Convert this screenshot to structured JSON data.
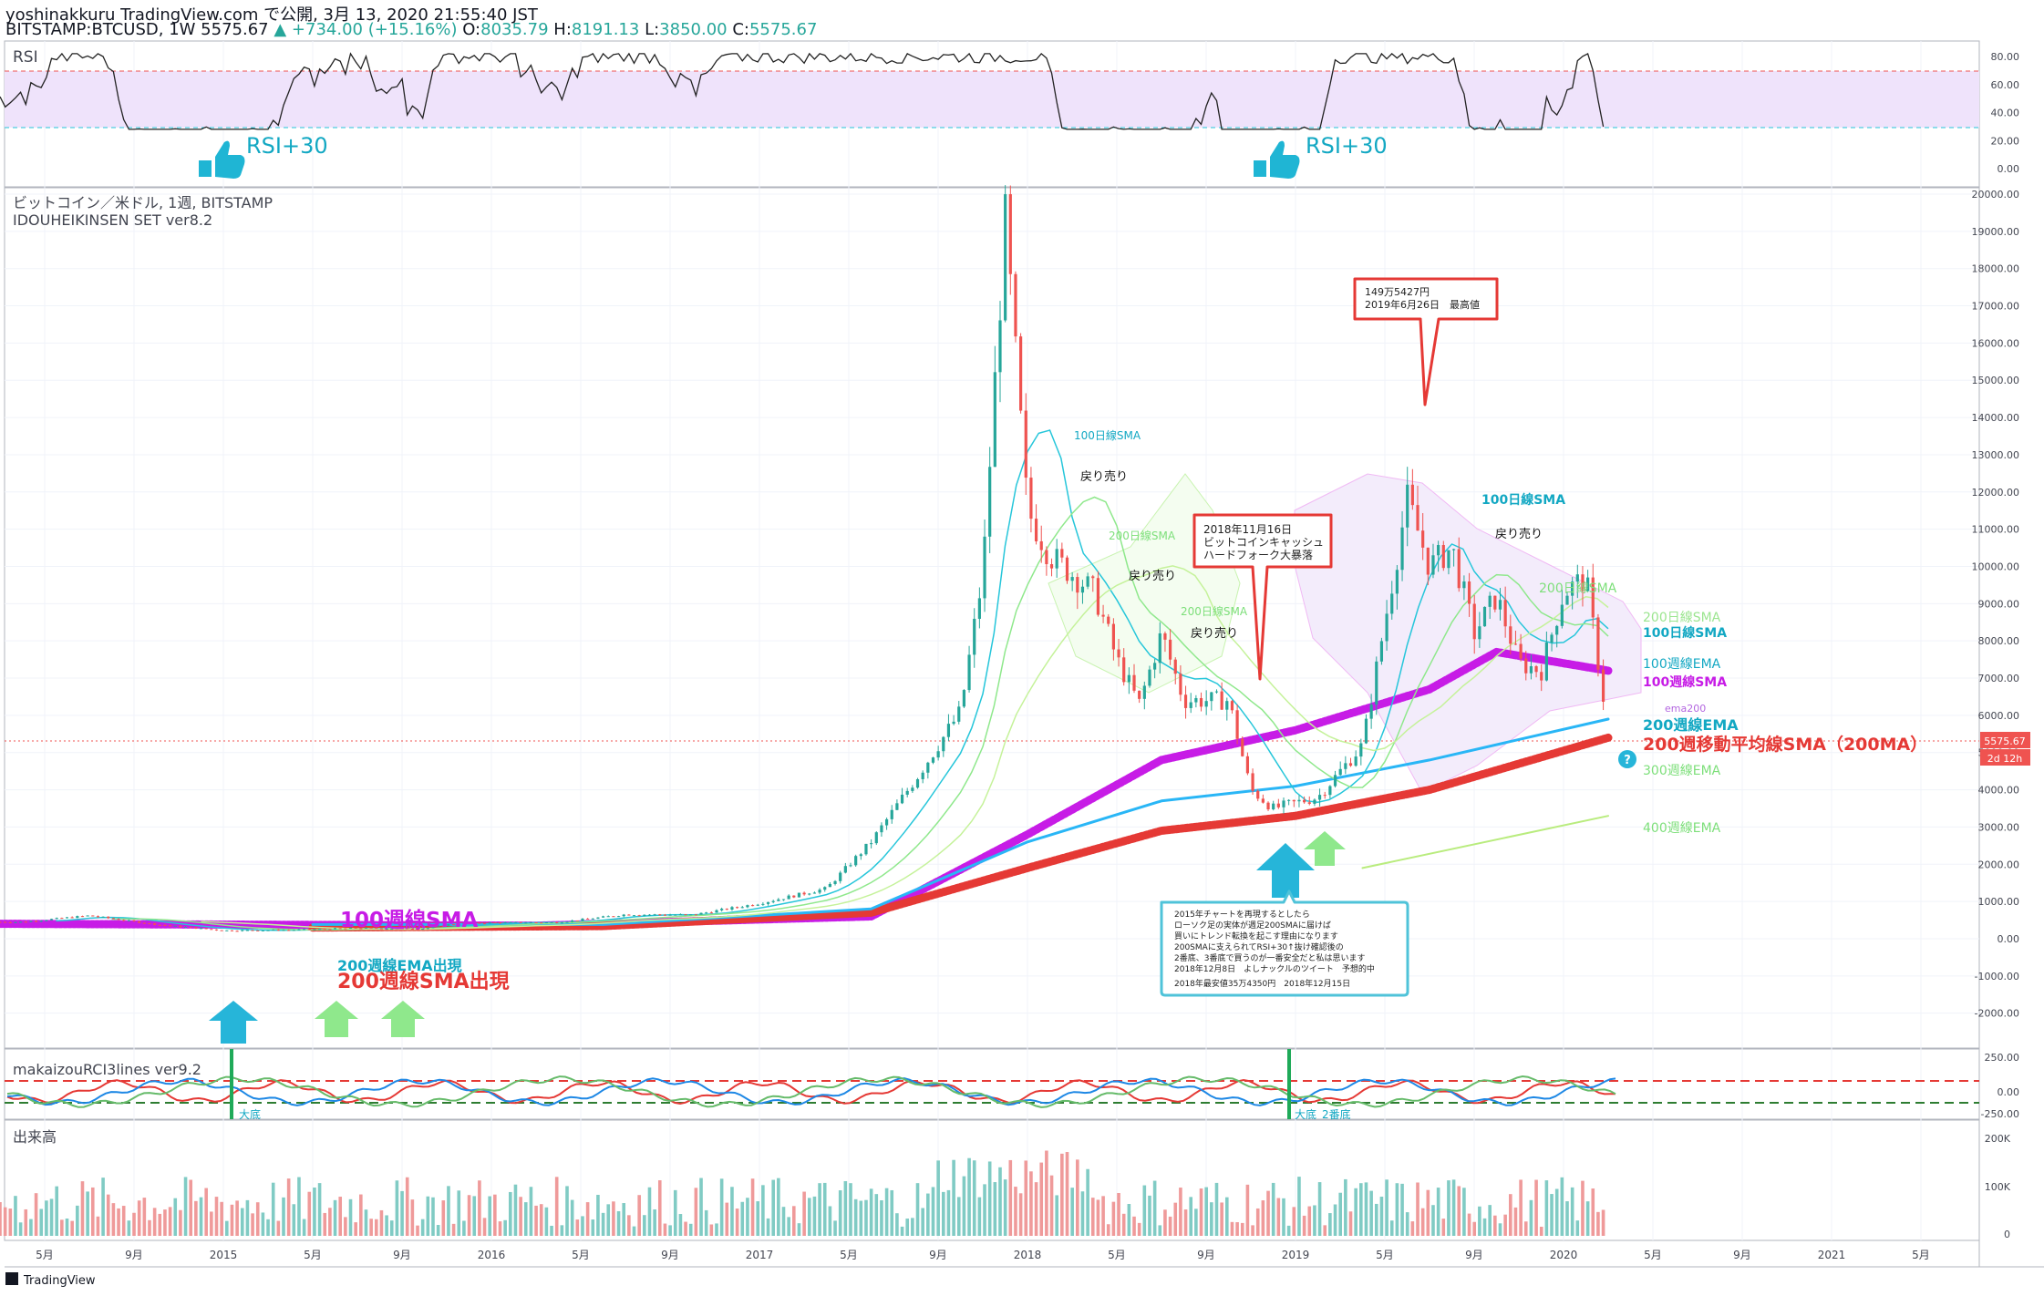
{
  "header": {
    "publish_line": "yoshinakkuru TradingView.com で公開, 3月 13, 2020 21:55:40 JST",
    "symbol_line": "BITSTAMP:BTCUSD, 1W 5575.67",
    "change": "+734.00 (+15.16%)",
    "o": "8035.79",
    "h": "8191.13",
    "l": "3850.00",
    "c": "5575.67",
    "o_label": "O:",
    "h_label": "H:",
    "l_label": "L:",
    "c_label": "C:"
  },
  "panes": {
    "rsi_title": "RSI",
    "main_title": "ビットコイン／米ドル, 1週, BITSTAMP",
    "main_subtitle": "IDOUHEIKINSEN SET ver8.2",
    "rci_title": "makaizouRCI3lines ver9.2",
    "volume_title": "出来高"
  },
  "colors": {
    "up": "#26a69a",
    "down": "#ef5350",
    "sma100w": "#c71ce6",
    "sma200w": "#e53935",
    "ema200w": "#29b6f6",
    "rsi_band": "#efe3fb",
    "cyan_text": "#13a8c3",
    "green_text": "#7ddf7a"
  },
  "axes": {
    "rsi_ticks": [
      "80.00",
      "60.00",
      "40.00",
      "20.00",
      "0.00"
    ],
    "price_ticks": [
      "20000.00",
      "19000.00",
      "18000.00",
      "17000.00",
      "16000.00",
      "15000.00",
      "14000.00",
      "13000.00",
      "12000.00",
      "11000.00",
      "10000.00",
      "9000.00",
      "8000.00",
      "7000.00",
      "6000.00",
      "5000.00",
      "4000.00",
      "3000.00",
      "2000.00",
      "1000.00",
      "0.00",
      "-1000.00",
      "-2000.00"
    ],
    "rci_ticks": [
      "250.00",
      "0.00",
      "-250.00"
    ],
    "volume_ticks": [
      "200K",
      "100K",
      "0"
    ],
    "time_ticks": [
      "5月",
      "9月",
      "2015",
      "5月",
      "9月",
      "2016",
      "5月",
      "9月",
      "2017",
      "5月",
      "9月",
      "2018",
      "5月",
      "9月",
      "2019",
      "5月",
      "9月",
      "2020",
      "5月",
      "9月",
      "2021",
      "5月"
    ],
    "price_badge": "5575.67",
    "time_badge": "2d 12h"
  },
  "annotations": {
    "rsi_note_1": "RSI+30",
    "rsi_note_2": "RSI+30",
    "sma100w_label": "100週線SMA",
    "ema200w_appear": "200週線EMA出現",
    "sma200w_appear": "200週線SMA出現",
    "sma100d_1": "100日線SMA",
    "sma200d_1": "200日線SMA",
    "sma200d_2": "200日線SMA",
    "sell_1": "戻り売り",
    "sell_2": "戻り売り",
    "sell_3": "戻り売り",
    "sell_4": "戻り売り",
    "sma100d_2": "100日線SMA",
    "sma200d_3": "200日線SMA",
    "r_200d_sma": "200日線SMA",
    "r_100d_sma": "100日線SMA",
    "r_100w_ema": "100週線EMA",
    "r_100w_sma": "100週線SMA",
    "r_ema200": "ema200",
    "r_200w_ema": "200週線EMA",
    "r_200w_sma": "200週移動平均線SMA（200MA）",
    "r_300w_ema": "300週線EMA",
    "r_400w_ema": "400週線EMA",
    "callout_ath_1": "149万5427円",
    "callout_ath_2": "2019年6月26日　最高値",
    "callout_bch_1": "2018年11月16日",
    "callout_bch_2": "ビットコインキャッシュ",
    "callout_bch_3": "ハードフォーク大暴落",
    "note_1": "2015年チャートを再現するとしたら",
    "note_2": "ローソク足の実体が週足200SMAに届けば",
    "note_3": "買いにトレンド転換を起こす理由になります",
    "note_4": "200SMAに支えられてRSI+30↑抜け確認後の",
    "note_5": "2番底、3番底で買うのが一番安全だと私は思います",
    "note_6": "2018年12月8日　よしナックルのツイート　予想的中",
    "note_7": "2018年最安値35万4350円　2018年12月15日",
    "bottom_1": "大底",
    "bottom_2": "大底",
    "bottom_3": "2番底",
    "footer": "TradingView"
  },
  "chart_data": {
    "type": "candlestick",
    "title": "ビットコイン／米ドル, 1週, BITSTAMP",
    "x_range": [
      "2014-03",
      "2021-07"
    ],
    "ylim": [
      -2400,
      20000
    ],
    "price_points": [
      {
        "date": "2014-04",
        "close": 450
      },
      {
        "date": "2014-07",
        "close": 620
      },
      {
        "date": "2014-10",
        "close": 380
      },
      {
        "date": "2015-01",
        "close": 220
      },
      {
        "date": "2015-04",
        "close": 235
      },
      {
        "date": "2015-07",
        "close": 285
      },
      {
        "date": "2015-10",
        "close": 270
      },
      {
        "date": "2015-11",
        "close": 380
      },
      {
        "date": "2016-01",
        "close": 430
      },
      {
        "date": "2016-04",
        "close": 440
      },
      {
        "date": "2016-07",
        "close": 650
      },
      {
        "date": "2016-10",
        "close": 640
      },
      {
        "date": "2017-01",
        "close": 950
      },
      {
        "date": "2017-04",
        "close": 1350
      },
      {
        "date": "2017-06",
        "close": 2600
      },
      {
        "date": "2017-08",
        "close": 4300
      },
      {
        "date": "2017-10",
        "close": 6100
      },
      {
        "date": "2017-11",
        "close": 9800
      },
      {
        "date": "2017-12",
        "close": 19300
      },
      {
        "date": "2018-01",
        "close": 11500
      },
      {
        "date": "2018-02",
        "close": 10300
      },
      {
        "date": "2018-04",
        "close": 9300
      },
      {
        "date": "2018-05",
        "close": 7500
      },
      {
        "date": "2018-06",
        "close": 6300
      },
      {
        "date": "2018-07",
        "close": 8200
      },
      {
        "date": "2018-08",
        "close": 6400
      },
      {
        "date": "2018-10",
        "close": 6400
      },
      {
        "date": "2018-11",
        "close": 4000
      },
      {
        "date": "2018-12",
        "close": 3500
      },
      {
        "date": "2019-02",
        "close": 3800
      },
      {
        "date": "2019-04",
        "close": 5200
      },
      {
        "date": "2019-05",
        "close": 8500
      },
      {
        "date": "2019-06",
        "close": 11800
      },
      {
        "date": "2019-07",
        "close": 10000
      },
      {
        "date": "2019-08",
        "close": 10500
      },
      {
        "date": "2019-09",
        "close": 8200
      },
      {
        "date": "2019-10",
        "close": 9200
      },
      {
        "date": "2019-11",
        "close": 7400
      },
      {
        "date": "2019-12",
        "close": 7200
      },
      {
        "date": "2020-01",
        "close": 9300
      },
      {
        "date": "2020-02",
        "close": 9700
      },
      {
        "date": "2020-03",
        "close": 5575.67
      }
    ],
    "moving_averages": [
      {
        "name": "100週線SMA",
        "points": [
          [
            "2014-03",
            400
          ],
          [
            "2016-03",
            350
          ],
          [
            "2017-06",
            600
          ],
          [
            "2018-01",
            2800
          ],
          [
            "2018-07",
            4800
          ],
          [
            "2019-01",
            5600
          ],
          [
            "2019-07",
            6700
          ],
          [
            "2019-10",
            7700
          ],
          [
            "2020-03",
            7200
          ]
        ]
      },
      {
        "name": "200週移動平均線SMA（200MA）",
        "points": [
          [
            "2015-05",
            300
          ],
          [
            "2016-06",
            340
          ],
          [
            "2017-06",
            700
          ],
          [
            "2018-01",
            1900
          ],
          [
            "2018-07",
            2900
          ],
          [
            "2019-01",
            3300
          ],
          [
            "2019-07",
            4000
          ],
          [
            "2020-03",
            5400
          ]
        ]
      },
      {
        "name": "200週線EMA",
        "points": [
          [
            "2015-05",
            380
          ],
          [
            "2016-06",
            380
          ],
          [
            "2017-06",
            800
          ],
          [
            "2018-01",
            2600
          ],
          [
            "2018-07",
            3700
          ],
          [
            "2019-01",
            4100
          ],
          [
            "2019-07",
            4800
          ],
          [
            "2020-03",
            5900
          ]
        ]
      },
      {
        "name": "400週線EMA",
        "points": [
          [
            "2019-04",
            1900
          ],
          [
            "2020-03",
            3300
          ]
        ]
      }
    ],
    "rsi_range": [
      0,
      80
    ]
  }
}
